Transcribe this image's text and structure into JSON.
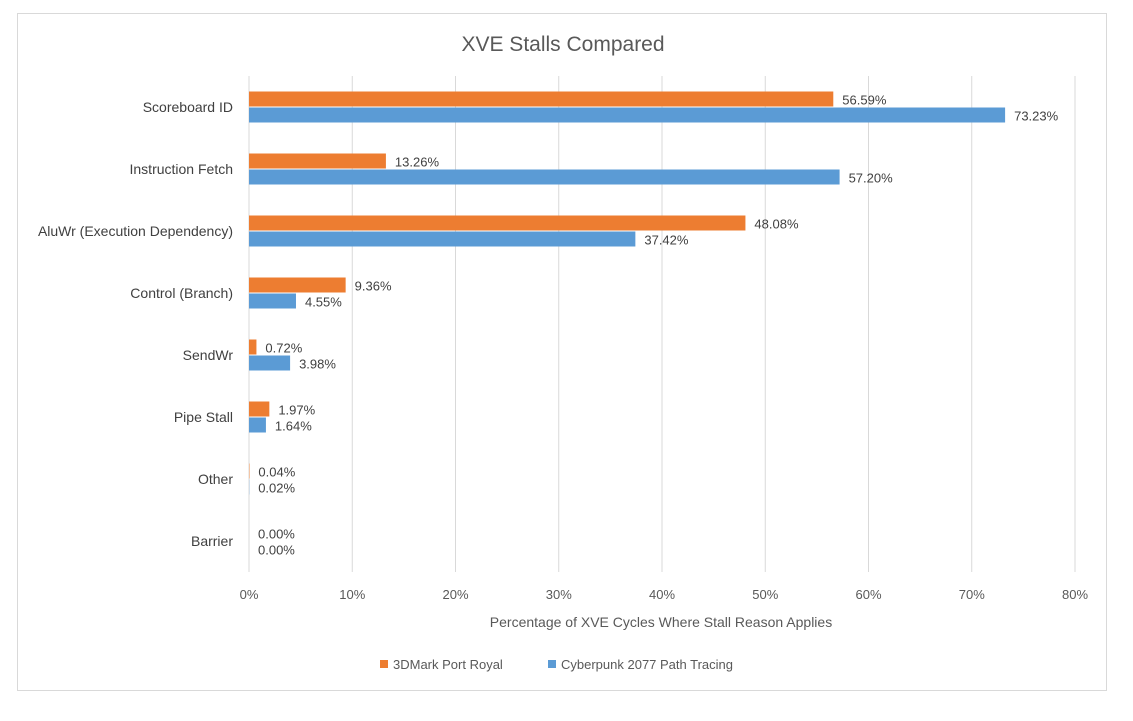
{
  "chart_data": {
    "type": "bar",
    "orientation": "horizontal",
    "title": "XVE Stalls Compared",
    "categories": [
      "Scoreboard ID",
      "Instruction Fetch",
      "AluWr (Execution Dependency)",
      "Control (Branch)",
      "SendWr",
      "Pipe Stall",
      "Other",
      "Barrier"
    ],
    "series": [
      {
        "name": "3DMark Port Royal",
        "color": "#ed7d31",
        "values": [
          56.59,
          13.26,
          48.08,
          9.36,
          0.72,
          1.97,
          0.04,
          0.0
        ],
        "labels": [
          "56.59%",
          "13.26%",
          "48.08%",
          "9.36%",
          "0.72%",
          "1.97%",
          "0.04%",
          "0.00%"
        ]
      },
      {
        "name": "Cyberpunk 2077 Path Tracing",
        "color": "#5b9bd5",
        "values": [
          73.23,
          57.2,
          37.42,
          4.55,
          3.98,
          1.64,
          0.02,
          0.0
        ],
        "labels": [
          "73.23%",
          "57.20%",
          "37.42%",
          "4.55%",
          "3.98%",
          "1.64%",
          "0.02%",
          "0.00%"
        ]
      }
    ],
    "xlabel": "Percentage of XVE Cycles Where Stall Reason Applies",
    "ylabel": "",
    "xlim": [
      0,
      80
    ],
    "xticks": [
      0,
      10,
      20,
      30,
      40,
      50,
      60,
      70,
      80
    ],
    "xtick_labels": [
      "0%",
      "10%",
      "20%",
      "30%",
      "40%",
      "50%",
      "60%",
      "70%",
      "80%"
    ],
    "grid": true,
    "legend_position": "bottom"
  }
}
